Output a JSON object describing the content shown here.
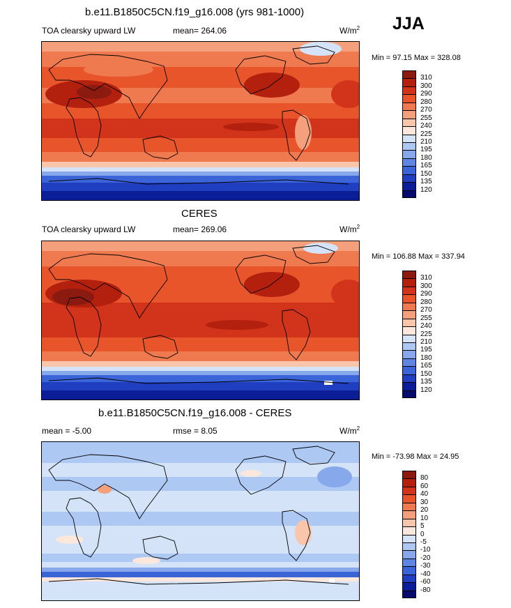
{
  "season": "JJA",
  "panels": [
    {
      "title": "b.e11.B1850C5CN.f19_g16.008 (yrs 981-1000)",
      "left_label": "TOA clearsky upward LW",
      "center_label": "mean= 264.06",
      "unit": "W/m",
      "unit_exp": "2",
      "minmax": "Min =  97.15 Max = 328.08",
      "colorbar": {
        "labels": [
          "310",
          "300",
          "290",
          "280",
          "270",
          "255",
          "240",
          "225",
          "210",
          "195",
          "180",
          "165",
          "150",
          "135",
          "120"
        ],
        "colors": [
          "#8b1a10",
          "#b3200e",
          "#d1341a",
          "#e8552b",
          "#f07a50",
          "#f4a07c",
          "#f9c5ab",
          "#fbe7dc",
          "#d4e3f7",
          "#adc8f2",
          "#87a9ec",
          "#5f86e3",
          "#3a64d8",
          "#1f3fc0",
          "#0b1d97",
          "#050c6e"
        ]
      }
    },
    {
      "title": "CERES",
      "left_label": "TOA clearsky upward LW",
      "center_label": "mean= 269.06",
      "unit": "W/m",
      "unit_exp": "2",
      "minmax": "Min = 106.88 Max = 337.94",
      "colorbar": {
        "labels": [
          "310",
          "300",
          "290",
          "280",
          "270",
          "255",
          "240",
          "225",
          "210",
          "195",
          "180",
          "165",
          "150",
          "135",
          "120"
        ],
        "colors": [
          "#8b1a10",
          "#b3200e",
          "#d1341a",
          "#e8552b",
          "#f07a50",
          "#f4a07c",
          "#f9c5ab",
          "#fbe7dc",
          "#d4e3f7",
          "#adc8f2",
          "#87a9ec",
          "#5f86e3",
          "#3a64d8",
          "#1f3fc0",
          "#0b1d97",
          "#050c6e"
        ]
      }
    },
    {
      "title": "b.e11.B1850C5CN.f19_g16.008 - CERES",
      "left_label": "mean =  -5.00",
      "center_label": "rmse =   8.05",
      "unit": "W/m",
      "unit_exp": "2",
      "minmax": "Min = -73.98 Max =  24.95",
      "colorbar": {
        "labels": [
          "80",
          "60",
          "40",
          "30",
          "20",
          "10",
          "5",
          "0",
          "-5",
          "-10",
          "-20",
          "-30",
          "-40",
          "-60",
          "-80"
        ],
        "colors": [
          "#8b1a10",
          "#b3200e",
          "#d1341a",
          "#e8552b",
          "#f07a50",
          "#f4a07c",
          "#f9c5ab",
          "#fbe7dc",
          "#d4e3f7",
          "#adc8f2",
          "#87a9ec",
          "#5f86e3",
          "#3a64d8",
          "#1f3fc0",
          "#0b1d97",
          "#050c6e"
        ]
      }
    }
  ]
}
